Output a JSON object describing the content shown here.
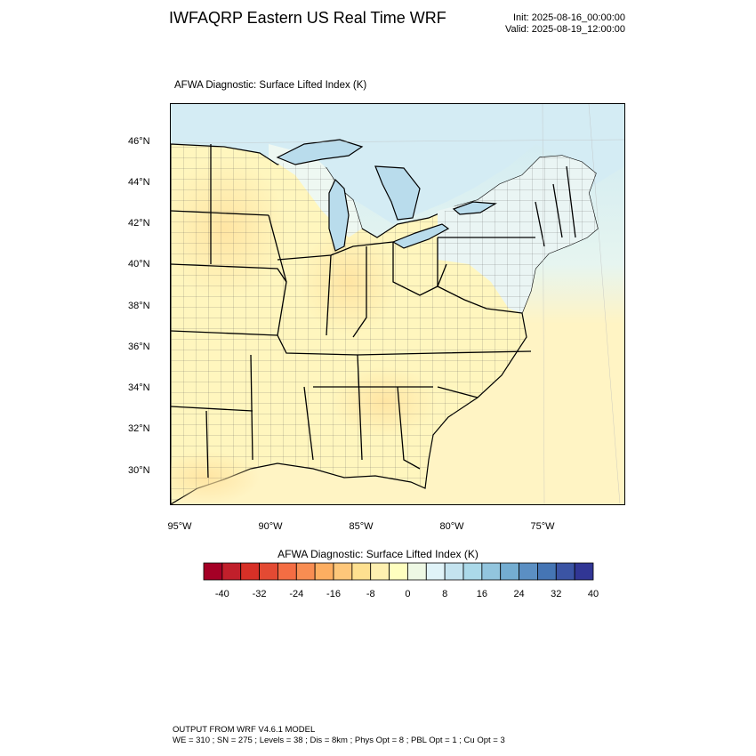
{
  "header": {
    "title": "IWFAQRP Eastern US Real Time WRF",
    "init": "Init: 2025-08-16_00:00:00",
    "valid": "Valid: 2025-08-19_12:00:00"
  },
  "map": {
    "title": "AFWA Diagnostic: Surface Lifted Index   (K)",
    "lat_labels": [
      "46°N",
      "44°N",
      "42°N",
      "40°N",
      "38°N",
      "36°N",
      "34°N",
      "32°N",
      "30°N"
    ],
    "lon_labels": [
      "95°W",
      "90°W",
      "85°W",
      "80°W",
      "75°W"
    ],
    "colors": {
      "land_warm": "#fff6be",
      "land_cool": "#eef8f2",
      "water_lake": "#b9dcec",
      "ocean_north": "#cde9f2",
      "ocean_south": "#fff4c4"
    }
  },
  "colorbar": {
    "title": "AFWA Diagnostic: Surface Lifted Index  (K)",
    "tick_labels": [
      "-40",
      "-32",
      "-24",
      "-16",
      "-8",
      "0",
      "8",
      "16",
      "24",
      "32",
      "40"
    ],
    "colors": [
      "#a50026",
      "#c11f2b",
      "#d73027",
      "#e34a33",
      "#f46d43",
      "#f88d52",
      "#fdae61",
      "#fec77a",
      "#fee090",
      "#fef0b0",
      "#ffffbf",
      "#eef8e4",
      "#e0f3f8",
      "#c4e3ef",
      "#abd9e9",
      "#92c5de",
      "#74add1",
      "#5b8fc3",
      "#4575b4",
      "#3b54a4",
      "#313695"
    ]
  },
  "footer": {
    "line1": "OUTPUT FROM WRF V4.6.1 MODEL",
    "line2": "WE = 310 ; SN = 275 ; Levels = 38 ; Dis = 8km ; Phys Opt = 8 ; PBL Opt = 1 ; Cu Opt = 3"
  }
}
